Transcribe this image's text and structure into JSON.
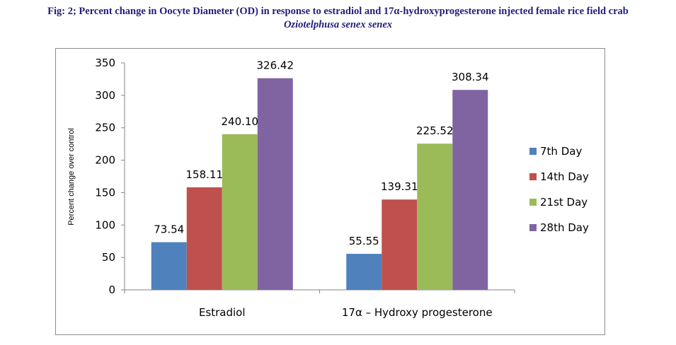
{
  "figure": {
    "title": "Fig: 2; Percent change in Oocyte Diameter (OD) in response to estradiol and 17α-hydroxyprogesterone injected female rice field crab",
    "subtitle": "Oziotelphusa senex senex"
  },
  "chart_data": {
    "type": "bar",
    "categories": [
      "Estradiol",
      "17α – Hydroxy progesterone"
    ],
    "series": [
      {
        "name": "7th Day",
        "color": "#4f81bd",
        "values": [
          73.54,
          55.55
        ],
        "labels": [
          "73.54",
          "55.55"
        ]
      },
      {
        "name": "14th Day",
        "color": "#c0504d",
        "values": [
          158.11,
          139.31
        ],
        "labels": [
          "158.11",
          "139.31"
        ]
      },
      {
        "name": "21st Day",
        "color": "#9bbb59",
        "values": [
          240.1,
          225.52
        ],
        "labels": [
          "240.10",
          "225.52"
        ]
      },
      {
        "name": "28th Day",
        "color": "#8064a2",
        "values": [
          326.42,
          308.34
        ],
        "labels": [
          "326.42",
          "308.34"
        ]
      }
    ],
    "ylabel": "Percent change over control",
    "ylim": [
      0,
      350
    ],
    "yticks": [
      0,
      50,
      100,
      150,
      200,
      250,
      300,
      350
    ],
    "legend_position": "right",
    "grid": false
  }
}
